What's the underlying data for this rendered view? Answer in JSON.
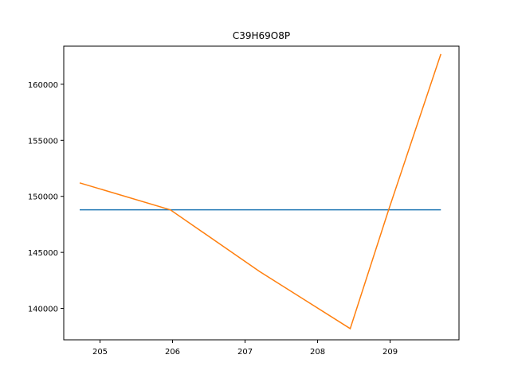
{
  "chart_data": {
    "type": "line",
    "title": "C39H69O8P",
    "xlabel": "",
    "ylabel": "",
    "xlim": [
      204.5,
      209.95
    ],
    "ylim": [
      137200,
      163400
    ],
    "x_ticks": [
      205,
      206,
      207,
      208,
      209
    ],
    "y_ticks": [
      140000,
      145000,
      150000,
      155000,
      160000
    ],
    "grid": false,
    "series": [
      {
        "color": "#1f77b4",
        "points": [
          [
            204.72,
            148800
          ],
          [
            209.7,
            148800
          ]
        ]
      },
      {
        "color": "#ff7f0e",
        "points": [
          [
            204.72,
            151200
          ],
          [
            205.97,
            148800
          ],
          [
            207.2,
            143300
          ],
          [
            208.45,
            138200
          ],
          [
            208.98,
            148800
          ],
          [
            209.7,
            162700
          ]
        ]
      }
    ]
  }
}
